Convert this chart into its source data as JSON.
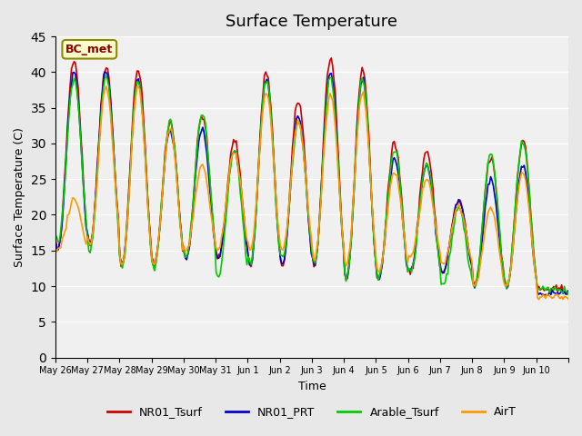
{
  "title": "Surface Temperature",
  "xlabel": "Time",
  "ylabel": "Surface Temperature (C)",
  "ylim": [
    0,
    45
  ],
  "yticks": [
    0,
    5,
    10,
    15,
    20,
    25,
    30,
    35,
    40,
    45
  ],
  "annotation": "BC_met",
  "legend": [
    "NR01_Tsurf",
    "NR01_PRT",
    "Arable_Tsurf",
    "AirT"
  ],
  "colors": [
    "#cc0000",
    "#0000cc",
    "#00cc00",
    "#ff9900"
  ],
  "background_color": "#e8e8e8",
  "plot_bg_color": "#f0f0f0",
  "xtick_labels": [
    "May 26",
    "May 27",
    "May 28",
    "May 29",
    "May 30",
    "May 31",
    "Jun 1",
    "Jun 2",
    "Jun 3",
    "Jun 4",
    "Jun 5",
    "Jun 6",
    "Jun 7",
    "Jun 8",
    "Jun 9",
    "Jun 10"
  ],
  "num_days": 16,
  "pts_per_day": 24
}
